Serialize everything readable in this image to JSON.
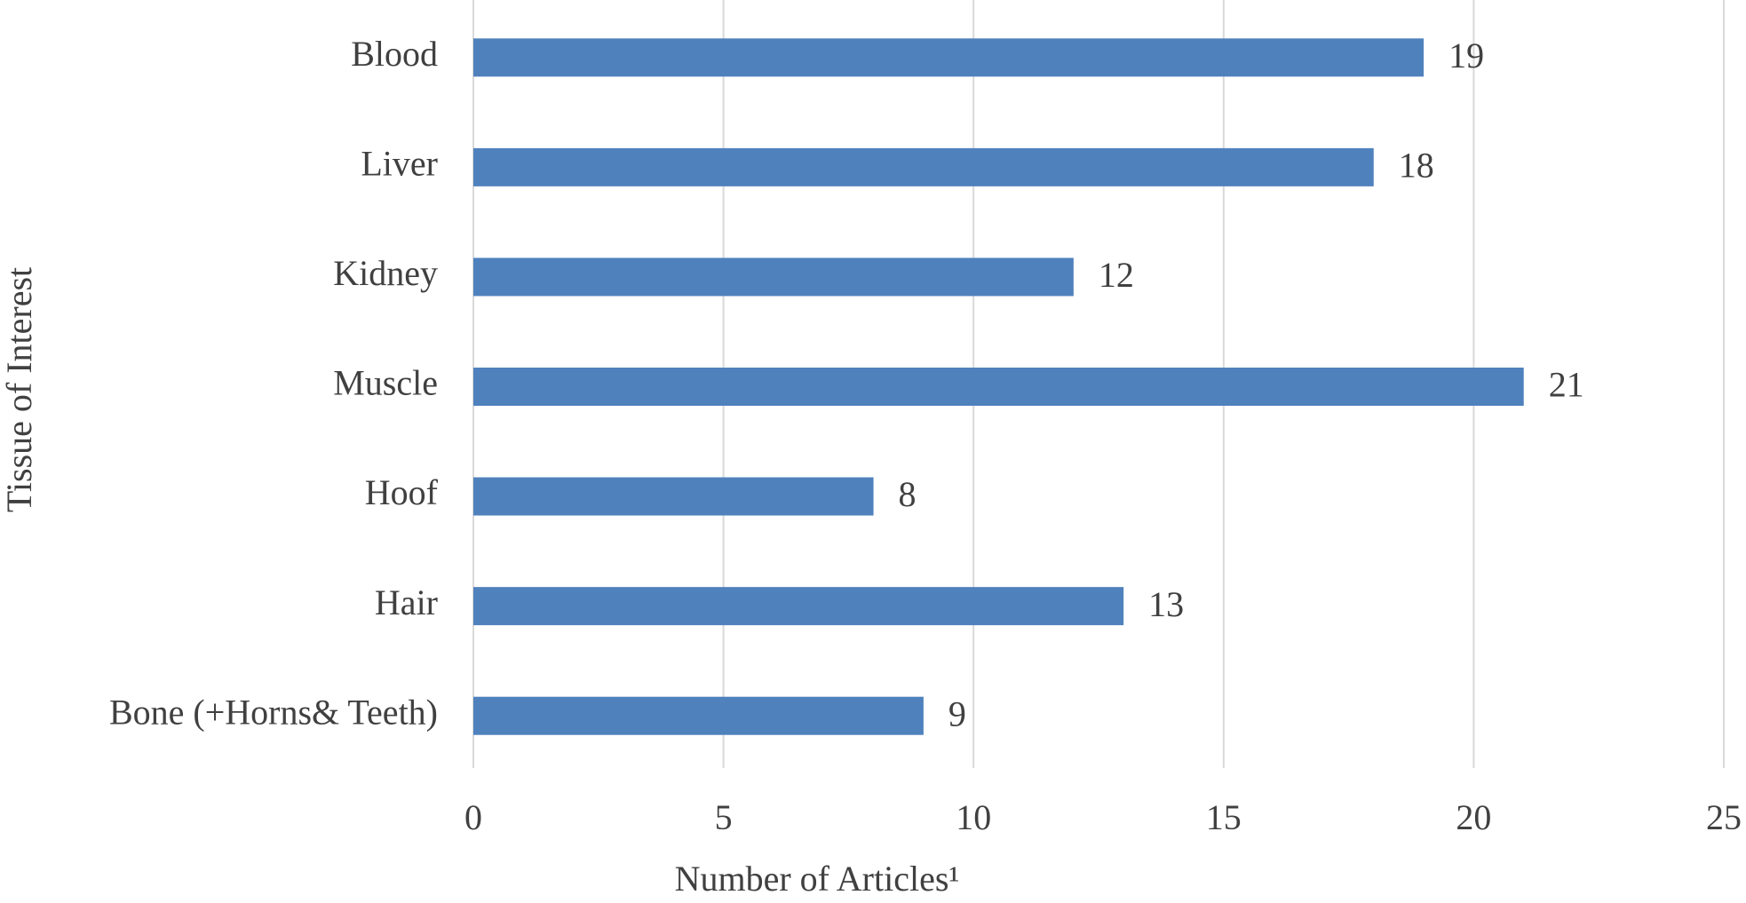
{
  "chart_data": {
    "type": "barh",
    "categories": [
      "Blood",
      "Liver",
      "Kidney",
      "Muscle",
      "Hoof",
      "Hair",
      "Bone (+Horns& Teeth)"
    ],
    "values": [
      19,
      18,
      12,
      21,
      8,
      13,
      9
    ],
    "color": "#4f81bd",
    "xlabel": "Number of Articles¹",
    "ylabel": "Tissue of Interest",
    "xlim": [
      0,
      25
    ],
    "xticks": [
      0,
      5,
      10,
      15,
      20,
      25
    ],
    "grid": true
  }
}
